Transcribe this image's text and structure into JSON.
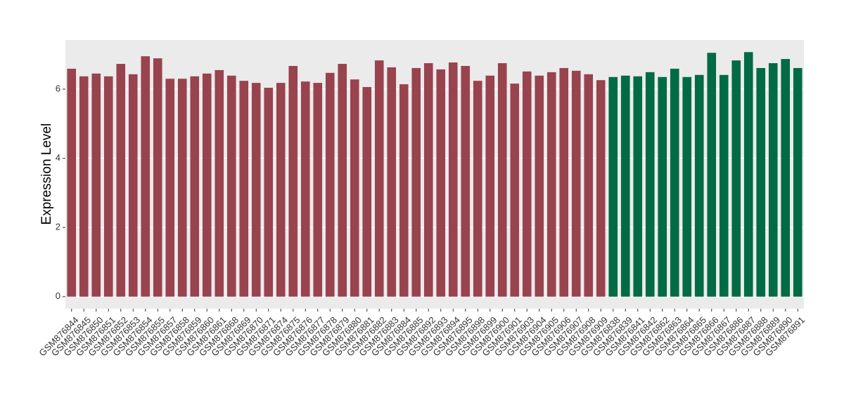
{
  "chart_data": {
    "type": "bar",
    "y_label": "Expression Level",
    "categories": [
      "GSM876844",
      "GSM876845",
      "GSM876850",
      "GSM876851",
      "GSM876852",
      "GSM876853",
      "GSM876854",
      "GSM876855",
      "GSM876857",
      "GSM876858",
      "GSM876859",
      "GSM876860",
      "GSM876861",
      "GSM876868",
      "GSM876869",
      "GSM876870",
      "GSM876871",
      "GSM876874",
      "GSM876875",
      "GSM876876",
      "GSM876877",
      "GSM876878",
      "GSM876879",
      "GSM876880",
      "GSM876881",
      "GSM876882",
      "GSM876883",
      "GSM876884",
      "GSM876885",
      "GSM876892",
      "GSM876893",
      "GSM876894",
      "GSM876895",
      "GSM876898",
      "GSM876899",
      "GSM876900",
      "GSM876901",
      "GSM876903",
      "GSM876904",
      "GSM876905",
      "GSM876906",
      "GSM876907",
      "GSM876908",
      "GSM876909",
      "GSM876838",
      "GSM876839",
      "GSM876841",
      "GSM876842",
      "GSM876862",
      "GSM876863",
      "GSM876864",
      "GSM876865",
      "GSM876866",
      "GSM876867",
      "GSM876886",
      "GSM876887",
      "GSM876888",
      "GSM876889",
      "GSM876890",
      "GSM876891"
    ],
    "values": [
      6.59,
      6.37,
      6.45,
      6.37,
      6.73,
      6.43,
      6.95,
      6.89,
      6.3,
      6.3,
      6.37,
      6.45,
      6.55,
      6.39,
      6.24,
      6.18,
      6.04,
      6.18,
      6.67,
      6.22,
      6.18,
      6.47,
      6.73,
      6.28,
      6.06,
      6.83,
      6.63,
      6.14,
      6.61,
      6.75,
      6.57,
      6.77,
      6.67,
      6.24,
      6.39,
      6.75,
      6.16,
      6.51,
      6.39,
      6.49,
      6.61,
      6.53,
      6.43,
      6.26,
      6.35,
      6.39,
      6.37,
      6.49,
      6.35,
      6.59,
      6.35,
      6.41,
      7.05,
      6.41,
      6.83,
      7.07,
      6.61,
      6.75,
      6.87,
      6.61
    ],
    "colors": [
      "#99434f",
      "#99434f",
      "#99434f",
      "#99434f",
      "#99434f",
      "#99434f",
      "#99434f",
      "#99434f",
      "#99434f",
      "#99434f",
      "#99434f",
      "#99434f",
      "#99434f",
      "#99434f",
      "#99434f",
      "#99434f",
      "#99434f",
      "#99434f",
      "#99434f",
      "#99434f",
      "#99434f",
      "#99434f",
      "#99434f",
      "#99434f",
      "#99434f",
      "#99434f",
      "#99434f",
      "#99434f",
      "#99434f",
      "#99434f",
      "#99434f",
      "#99434f",
      "#99434f",
      "#99434f",
      "#99434f",
      "#99434f",
      "#99434f",
      "#99434f",
      "#99434f",
      "#99434f",
      "#99434f",
      "#99434f",
      "#99434f",
      "#99434f",
      "#006b45",
      "#006b45",
      "#006b45",
      "#006b45",
      "#006b45",
      "#006b45",
      "#006b45",
      "#006b45",
      "#006b45",
      "#006b45",
      "#006b45",
      "#006b45",
      "#006b45",
      "#006b45",
      "#006b45",
      "#006b45"
    ],
    "ylim": [
      -0.35,
      7.42
    ],
    "yticks": [
      0,
      2,
      4,
      6
    ],
    "grid": true
  }
}
